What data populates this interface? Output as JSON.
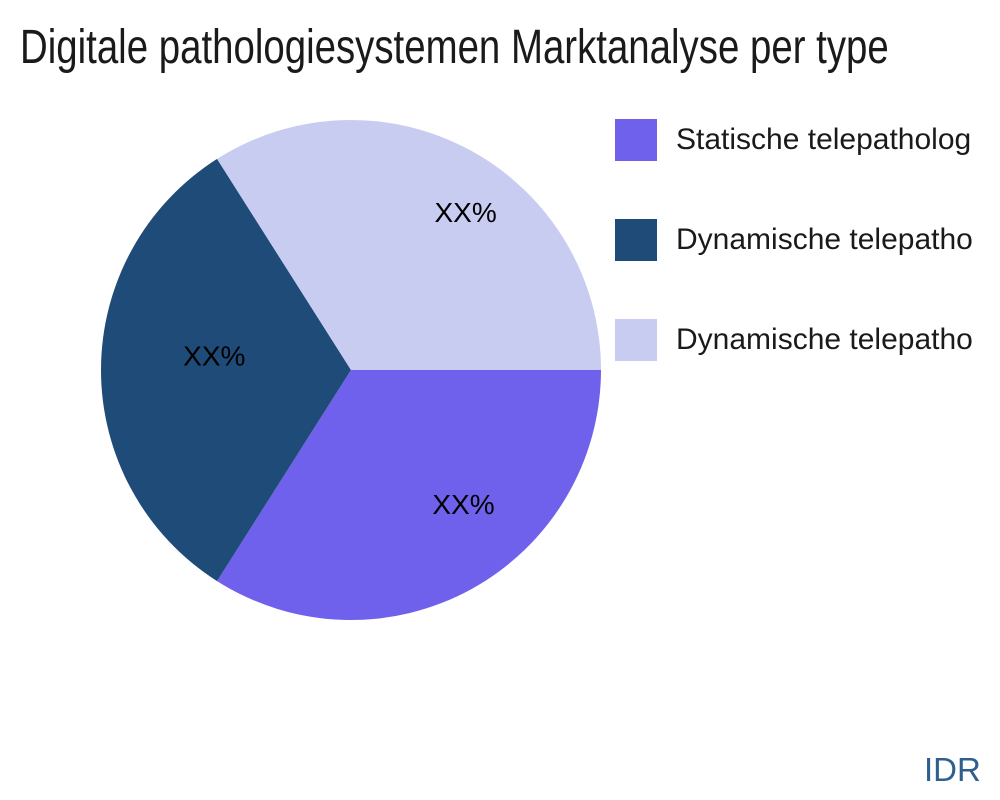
{
  "title": "Digitale pathologiesystemen Marktanalyse per type",
  "watermark": "IDR",
  "chart_data": {
    "type": "pie",
    "title": "Digitale pathologiesystemen Marktanalyse per type",
    "labels": [
      "Statische telepatholog",
      "Dynamische telepatho",
      "Dynamische telepatho"
    ],
    "values": [
      34,
      32,
      34
    ],
    "display_labels": [
      "XX%",
      "XX%",
      "XX%"
    ],
    "colors": [
      "#6f61ec",
      "#1f4b78",
      "#c9ccf1"
    ],
    "label_color": "#000000",
    "legend_position": "right-top",
    "start_angle_deg": 0,
    "direction": "clockwise",
    "label_pos_hints": [
      {
        "angle_deg": 50,
        "radius_frac": 0.7
      },
      {
        "angle_deg": 186,
        "radius_frac": 0.55
      },
      {
        "angle_deg": 306,
        "radius_frac": 0.78
      }
    ]
  }
}
